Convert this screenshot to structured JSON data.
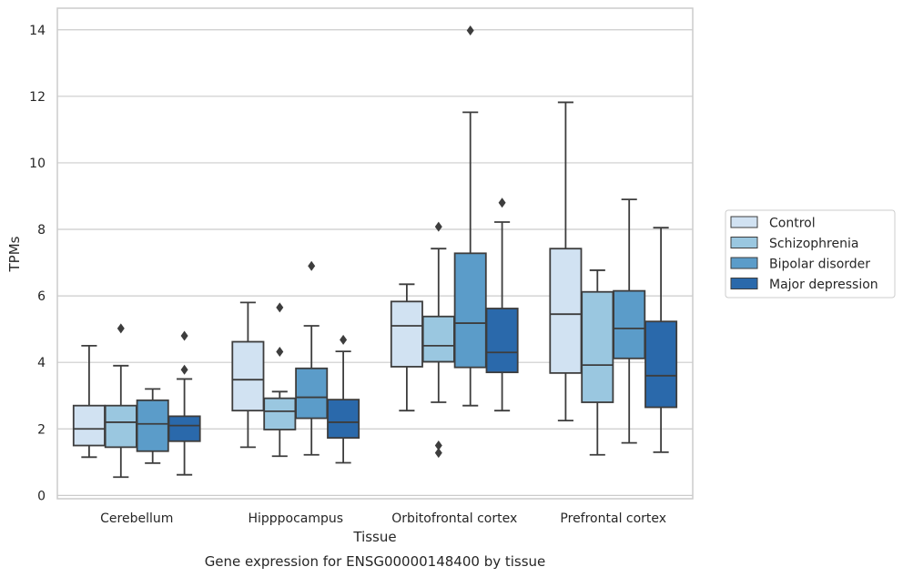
{
  "chart_data": {
    "type": "box",
    "xlabel": "Tissue",
    "ylabel": "TPMs",
    "caption": "Gene expression for ENSG00000148400 by tissue",
    "ylim": [
      -0.1,
      14.65
    ],
    "yticks": [
      0,
      2,
      4,
      6,
      8,
      10,
      12,
      14
    ],
    "grid": "horizontal",
    "legend_position": "right",
    "categories": [
      "Cerebellum",
      "Hipppocampus",
      "Orbitofrontal cortex",
      "Prefrontal cortex"
    ],
    "series": [
      {
        "name": "Control",
        "color": "#d1e2f2",
        "boxes": [
          {
            "whisker_low": 1.15,
            "q1": 1.5,
            "median": 2.0,
            "q3": 2.7,
            "whisker_high": 4.5,
            "outliers": []
          },
          {
            "whisker_low": 1.45,
            "q1": 2.55,
            "median": 3.48,
            "q3": 4.62,
            "whisker_high": 5.8,
            "outliers": []
          },
          {
            "whisker_low": 2.55,
            "q1": 3.87,
            "median": 5.1,
            "q3": 5.83,
            "whisker_high": 6.35,
            "outliers": []
          },
          {
            "whisker_low": 2.25,
            "q1": 3.68,
            "median": 5.45,
            "q3": 7.42,
            "whisker_high": 11.82,
            "outliers": []
          }
        ]
      },
      {
        "name": "Schizophrenia",
        "color": "#9ac7e0",
        "boxes": [
          {
            "whisker_low": 0.55,
            "q1": 1.45,
            "median": 2.2,
            "q3": 2.7,
            "whisker_high": 3.9,
            "outliers": [
              5.02
            ]
          },
          {
            "whisker_low": 1.18,
            "q1": 1.98,
            "median": 2.53,
            "q3": 2.92,
            "whisker_high": 3.12,
            "outliers": [
              4.32,
              5.65
            ]
          },
          {
            "whisker_low": 2.8,
            "q1": 4.02,
            "median": 4.5,
            "q3": 5.38,
            "whisker_high": 7.42,
            "outliers": [
              8.08,
              1.5,
              1.28
            ]
          },
          {
            "whisker_low": 1.22,
            "q1": 2.8,
            "median": 3.92,
            "q3": 6.12,
            "whisker_high": 6.77,
            "outliers": []
          }
        ]
      },
      {
        "name": "Bipolar disorder",
        "color": "#5b9cc9",
        "boxes": [
          {
            "whisker_low": 0.97,
            "q1": 1.33,
            "median": 2.15,
            "q3": 2.86,
            "whisker_high": 3.2,
            "outliers": []
          },
          {
            "whisker_low": 1.22,
            "q1": 2.32,
            "median": 2.95,
            "q3": 3.82,
            "whisker_high": 5.1,
            "outliers": [
              6.9
            ]
          },
          {
            "whisker_low": 2.7,
            "q1": 3.85,
            "median": 5.18,
            "q3": 7.28,
            "whisker_high": 11.52,
            "outliers": [
              13.98
            ]
          },
          {
            "whisker_low": 1.58,
            "q1": 4.12,
            "median": 5.02,
            "q3": 6.15,
            "whisker_high": 8.9,
            "outliers": []
          }
        ]
      },
      {
        "name": "Major depression",
        "color": "#2a69ab",
        "boxes": [
          {
            "whisker_low": 0.62,
            "q1": 1.63,
            "median": 2.1,
            "q3": 2.38,
            "whisker_high": 3.5,
            "outliers": [
              3.78,
              4.8
            ]
          },
          {
            "whisker_low": 0.98,
            "q1": 1.73,
            "median": 2.2,
            "q3": 2.88,
            "whisker_high": 4.33,
            "outliers": [
              4.68
            ]
          },
          {
            "whisker_low": 2.55,
            "q1": 3.7,
            "median": 4.3,
            "q3": 5.62,
            "whisker_high": 8.22,
            "outliers": [
              8.8
            ]
          },
          {
            "whisker_low": 1.3,
            "q1": 2.65,
            "median": 3.6,
            "q3": 5.23,
            "whisker_high": 8.05,
            "outliers": []
          }
        ]
      }
    ]
  }
}
